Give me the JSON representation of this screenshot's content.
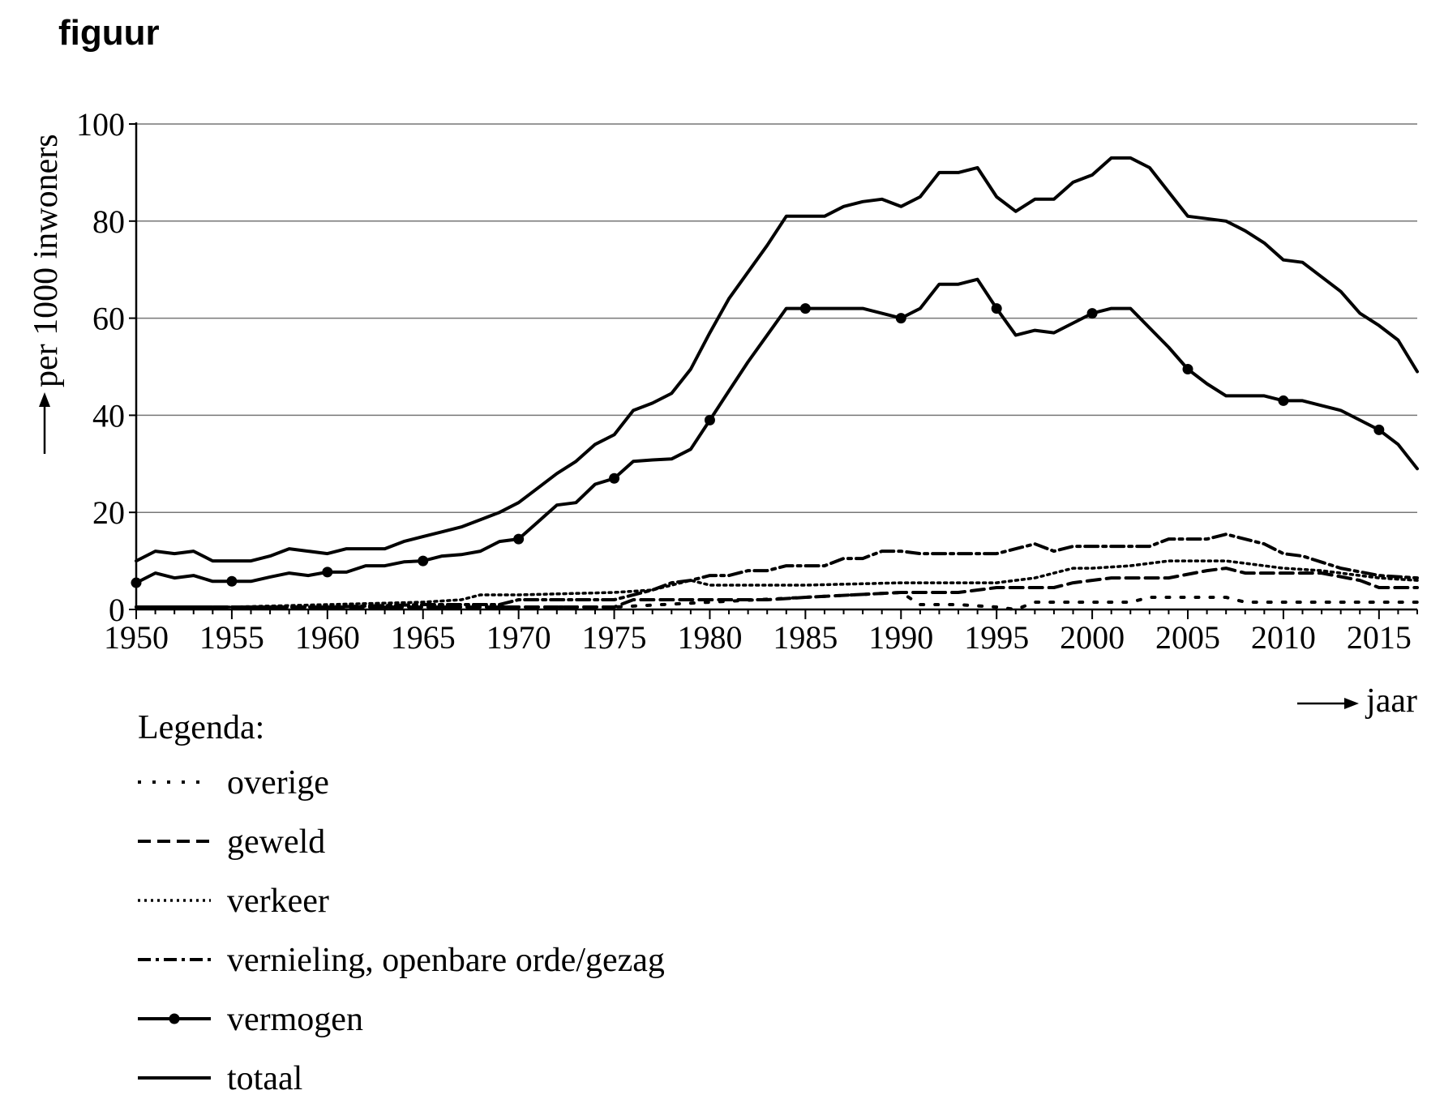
{
  "figure_label": "figuur",
  "chart_data": {
    "type": "line",
    "title": "",
    "xlabel": "jaar",
    "ylabel": "per 1000 inwoners",
    "xlim": [
      1950,
      2017
    ],
    "ylim": [
      0,
      100
    ],
    "xticks": [
      1950,
      1955,
      1960,
      1965,
      1970,
      1975,
      1980,
      1985,
      1990,
      1995,
      2000,
      2005,
      2010,
      2015
    ],
    "yticks": [
      0,
      20,
      40,
      60,
      80,
      100
    ],
    "grid": "horizontal",
    "legend_title": "Legenda:",
    "legend_position": "below",
    "series": [
      {
        "name": "overige",
        "style": "dotted-wide",
        "x": [
          1950,
          1955,
          1960,
          1965,
          1970,
          1975,
          1980,
          1985,
          1990,
          1991,
          1993,
          1995,
          1996,
          1997,
          2000,
          2002,
          2003,
          2005,
          2007,
          2008,
          2010,
          2015,
          2017
        ],
        "values": [
          0.5,
          0.5,
          0.5,
          0.5,
          0.5,
          0.5,
          1.5,
          2.5,
          3.5,
          1,
          1,
          0.5,
          0,
          1.5,
          1.5,
          1.5,
          2.5,
          2.5,
          2.5,
          1.5,
          1.5,
          1.5,
          1.5
        ]
      },
      {
        "name": "geweld",
        "style": "dashed",
        "x": [
          1950,
          1955,
          1960,
          1965,
          1970,
          1975,
          1976,
          1980,
          1983,
          1985,
          1990,
          1993,
          1995,
          1998,
          1999,
          2001,
          2004,
          2006,
          2007,
          2008,
          2010,
          2012,
          2014,
          2015,
          2017
        ],
        "values": [
          0.5,
          0.5,
          0.5,
          0.5,
          0.5,
          0.5,
          2,
          2,
          2,
          2.5,
          3.5,
          3.5,
          4.5,
          4.5,
          5.5,
          6.5,
          6.5,
          8,
          8.5,
          7.5,
          7.5,
          7.5,
          6,
          4.5,
          4.5
        ]
      },
      {
        "name": "verkeer",
        "style": "dotted",
        "x": [
          1950,
          1955,
          1960,
          1965,
          1967,
          1968,
          1970,
          1975,
          1977,
          1978,
          1979,
          1980,
          1985,
          1990,
          1995,
          1997,
          1999,
          2000,
          2002,
          2004,
          2007,
          2008,
          2010,
          2012,
          2015,
          2017
        ],
        "values": [
          0.5,
          0.5,
          1,
          1.5,
          2,
          3,
          3,
          3.5,
          4,
          5,
          6,
          5,
          5,
          5.5,
          5.5,
          6.5,
          8.5,
          8.5,
          9,
          10,
          10,
          9.5,
          8.5,
          8,
          6.5,
          6
        ]
      },
      {
        "name": "vernieling, openbare orde/gezag",
        "style": "dash-dot",
        "x": [
          1950,
          1955,
          1960,
          1965,
          1969,
          1970,
          1975,
          1977,
          1978,
          1979,
          1980,
          1981,
          1982,
          1983,
          1984,
          1986,
          1987,
          1988,
          1989,
          1990,
          1991,
          1995,
          1997,
          1998,
          1999,
          2000,
          2002,
          2003,
          2004,
          2006,
          2007,
          2009,
          2010,
          2011,
          2013,
          2015,
          2017
        ],
        "values": [
          0.5,
          0.5,
          0.5,
          1,
          1,
          2,
          2,
          4,
          5.5,
          6,
          7,
          7,
          8,
          8,
          9,
          9,
          10.5,
          10.5,
          12,
          12,
          11.5,
          11.5,
          13.5,
          12,
          13,
          13,
          13,
          13,
          14.5,
          14.5,
          15.5,
          13.5,
          11.5,
          11,
          8.5,
          7,
          6.5
        ]
      },
      {
        "name": "vermogen",
        "style": "solid-markers",
        "markers": [
          1950,
          1955,
          1960,
          1965,
          1970,
          1975,
          1980,
          1985,
          1990,
          1995,
          2000,
          2005,
          2010,
          2015
        ],
        "x": [
          1950,
          1951,
          1952,
          1953,
          1954,
          1955,
          1956,
          1957,
          1958,
          1959,
          1960,
          1961,
          1962,
          1963,
          1964,
          1965,
          1966,
          1967,
          1968,
          1969,
          1970,
          1971,
          1972,
          1973,
          1974,
          1975,
          1976,
          1977,
          1978,
          1979,
          1980,
          1981,
          1982,
          1983,
          1984,
          1985,
          1986,
          1987,
          1988,
          1989,
          1990,
          1991,
          1992,
          1993,
          1994,
          1995,
          1996,
          1997,
          1998,
          1999,
          2000,
          2001,
          2002,
          2003,
          2004,
          2005,
          2006,
          2007,
          2008,
          2009,
          2010,
          2011,
          2012,
          2013,
          2014,
          2015,
          2016,
          2017
        ],
        "values": [
          5.5,
          7.5,
          6.5,
          7,
          5.8,
          5.8,
          5.8,
          6.7,
          7.5,
          7,
          7.7,
          7.7,
          9,
          9,
          9.8,
          10,
          11,
          11.3,
          12,
          14,
          14.5,
          18,
          21.5,
          22,
          25.8,
          27,
          30.5,
          30.8,
          31,
          33,
          39,
          45,
          51,
          56.5,
          62,
          62,
          62,
          62,
          62,
          61,
          60,
          62,
          67,
          67,
          68,
          62,
          56.5,
          57.5,
          57,
          59,
          61,
          62,
          62,
          58,
          54,
          49.5,
          46.5,
          44,
          44,
          44,
          43,
          43,
          42,
          41,
          39,
          37,
          34,
          29
        ]
      },
      {
        "name": "totaal",
        "style": "solid",
        "x": [
          1950,
          1951,
          1952,
          1953,
          1954,
          1955,
          1956,
          1957,
          1958,
          1959,
          1960,
          1961,
          1962,
          1963,
          1964,
          1965,
          1966,
          1967,
          1968,
          1969,
          1970,
          1971,
          1972,
          1973,
          1974,
          1975,
          1976,
          1977,
          1978,
          1979,
          1980,
          1981,
          1982,
          1983,
          1984,
          1985,
          1986,
          1987,
          1988,
          1989,
          1990,
          1991,
          1992,
          1993,
          1994,
          1995,
          1996,
          1997,
          1998,
          1999,
          2000,
          2001,
          2002,
          2003,
          2004,
          2005,
          2006,
          2007,
          2008,
          2009,
          2010,
          2011,
          2012,
          2013,
          2014,
          2015,
          2016,
          2017
        ],
        "values": [
          10,
          12,
          11.5,
          12,
          10,
          10,
          10,
          11,
          12.5,
          12,
          11.5,
          12.5,
          12.5,
          12.5,
          14,
          15,
          16,
          17,
          18.5,
          20,
          22,
          25,
          28,
          30.5,
          34,
          36,
          41,
          42.5,
          44.5,
          49.5,
          57,
          64,
          69.5,
          75,
          81,
          81,
          81,
          83,
          84,
          84.5,
          83,
          85,
          90,
          90,
          91,
          85,
          82,
          84.5,
          84.5,
          88,
          89.5,
          93,
          93,
          91,
          86,
          81,
          80.5,
          80,
          78,
          75.5,
          72,
          71.5,
          68.5,
          65.5,
          61,
          58.5,
          55.5,
          49
        ]
      }
    ]
  }
}
